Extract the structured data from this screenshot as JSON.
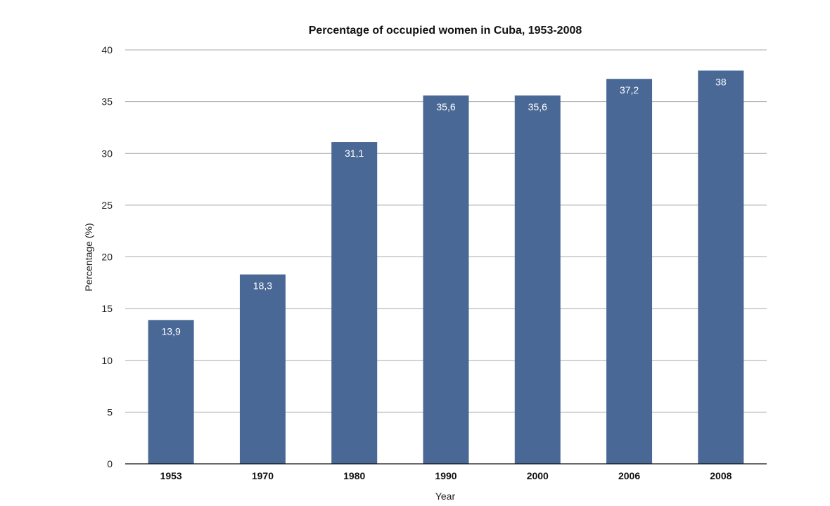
{
  "chart_data": {
    "type": "bar",
    "title": "Percentage of occupied women in Cuba, 1953-2008",
    "xlabel": "Year",
    "ylabel": "Percentage (%)",
    "categories": [
      "1953",
      "1970",
      "1980",
      "1990",
      "2000",
      "2006",
      "2008"
    ],
    "values": [
      13.9,
      18.3,
      31.1,
      35.6,
      35.6,
      37.2,
      38
    ],
    "data_labels": [
      "13,9",
      "18,3",
      "31,1",
      "35,6",
      "35,6",
      "37,2",
      "38"
    ],
    "y_ticks": [
      0,
      5,
      10,
      15,
      20,
      25,
      30,
      35,
      40
    ],
    "ylim": [
      0,
      40
    ],
    "grid": true,
    "legend": "none",
    "colors": {
      "bar": "#4a6896"
    }
  }
}
